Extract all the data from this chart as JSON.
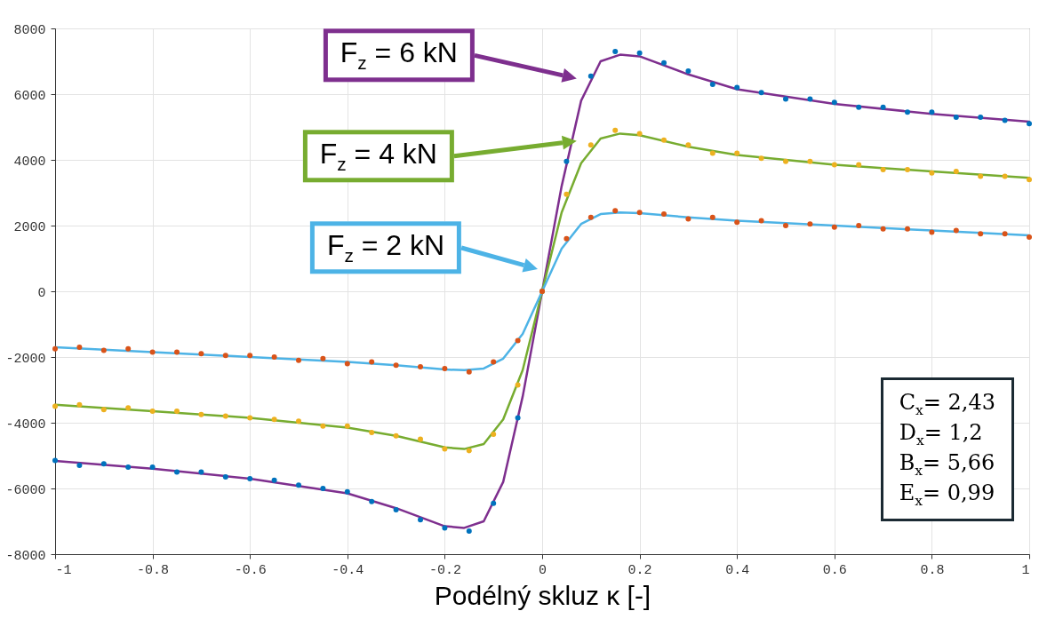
{
  "chart_data": {
    "type": "scatter",
    "xlabel": "Podélný skluz κ [-]",
    "xlim": [
      -1,
      1
    ],
    "xticks": [
      -1,
      -0.8,
      -0.6,
      -0.4,
      -0.2,
      0,
      0.2,
      0.4,
      0.6,
      0.8,
      1
    ],
    "ylim": [
      -8000,
      8000
    ],
    "yticks": [
      -8000,
      -6000,
      -4000,
      -2000,
      0,
      2000,
      4000,
      6000,
      8000
    ],
    "grid": true,
    "series": [
      {
        "marker": "circle",
        "color": "#0072bd",
        "x": [
          -1,
          -0.95,
          -0.9,
          -0.85,
          -0.8,
          -0.75,
          -0.7,
          -0.65,
          -0.6,
          -0.55,
          -0.5,
          -0.45,
          -0.4,
          -0.35,
          -0.3,
          -0.25,
          -0.2,
          -0.15,
          -0.1,
          -0.05,
          0,
          0.05,
          0.1,
          0.15,
          0.2,
          0.25,
          0.3,
          0.35,
          0.4,
          0.45,
          0.5,
          0.55,
          0.6,
          0.65,
          0.7,
          0.75,
          0.8,
          0.85,
          0.9,
          0.95,
          1
        ],
        "values": [
          -5150,
          -5300,
          -5250,
          -5350,
          -5350,
          -5500,
          -5500,
          -5650,
          -5700,
          -5750,
          -5900,
          -6000,
          -6100,
          -6400,
          -6650,
          -6950,
          -7200,
          -7300,
          -6450,
          -3850,
          0,
          3950,
          6550,
          7300,
          7250,
          6950,
          6700,
          6300,
          6200,
          6050,
          5850,
          5850,
          5750,
          5600,
          5600,
          5450,
          5450,
          5300,
          5300,
          5200,
          5100
        ]
      },
      {
        "marker": "circle",
        "color": "#edb120",
        "x": [
          -1,
          -0.95,
          -0.9,
          -0.85,
          -0.8,
          -0.75,
          -0.7,
          -0.65,
          -0.6,
          -0.55,
          -0.5,
          -0.45,
          -0.4,
          -0.35,
          -0.3,
          -0.25,
          -0.2,
          -0.15,
          -0.1,
          -0.05,
          0,
          0.05,
          0.1,
          0.15,
          0.2,
          0.25,
          0.3,
          0.35,
          0.4,
          0.45,
          0.5,
          0.55,
          0.6,
          0.65,
          0.7,
          0.75,
          0.8,
          0.85,
          0.9,
          0.95,
          1
        ],
        "values": [
          -3500,
          -3450,
          -3600,
          -3550,
          -3650,
          -3650,
          -3750,
          -3800,
          -3850,
          -3900,
          -3950,
          -4100,
          -4100,
          -4300,
          -4400,
          -4500,
          -4800,
          -4850,
          -4350,
          -2850,
          0,
          2950,
          4450,
          4900,
          4800,
          4600,
          4450,
          4200,
          4200,
          4050,
          3950,
          3950,
          3850,
          3850,
          3700,
          3700,
          3600,
          3650,
          3500,
          3500,
          3400
        ]
      },
      {
        "marker": "circle",
        "color": "#d95319",
        "x": [
          -1,
          -0.95,
          -0.9,
          -0.85,
          -0.8,
          -0.75,
          -0.7,
          -0.65,
          -0.6,
          -0.55,
          -0.5,
          -0.45,
          -0.4,
          -0.35,
          -0.3,
          -0.25,
          -0.2,
          -0.15,
          -0.1,
          -0.05,
          0,
          0.05,
          0.1,
          0.15,
          0.2,
          0.25,
          0.3,
          0.35,
          0.4,
          0.45,
          0.5,
          0.55,
          0.6,
          0.65,
          0.7,
          0.75,
          0.8,
          0.85,
          0.9,
          0.95,
          1
        ],
        "values": [
          -1750,
          -1700,
          -1800,
          -1750,
          -1850,
          -1850,
          -1900,
          -1950,
          -1950,
          -2000,
          -2100,
          -2050,
          -2200,
          -2150,
          -2250,
          -2300,
          -2350,
          -2450,
          -2150,
          -1500,
          0,
          1600,
          2250,
          2450,
          2400,
          2350,
          2200,
          2250,
          2100,
          2150,
          2000,
          2050,
          1950,
          2000,
          1900,
          1900,
          1800,
          1850,
          1750,
          1750,
          1650
        ]
      },
      {
        "type": "line",
        "color": "#7e2f8e",
        "x": [
          -1,
          -0.8,
          -0.6,
          -0.4,
          -0.3,
          -0.2,
          -0.16,
          -0.12,
          -0.08,
          -0.04,
          0,
          0.04,
          0.08,
          0.12,
          0.16,
          0.2,
          0.3,
          0.4,
          0.6,
          0.8,
          1
        ],
        "values": [
          -5160,
          -5400,
          -5700,
          -6150,
          -6600,
          -7150,
          -7200,
          -7000,
          -5800,
          -3200,
          0,
          3200,
          5800,
          7000,
          7200,
          7150,
          6600,
          6150,
          5700,
          5400,
          5160
        ]
      },
      {
        "type": "line",
        "color": "#77ac30",
        "x": [
          -1,
          -0.8,
          -0.6,
          -0.4,
          -0.3,
          -0.2,
          -0.16,
          -0.12,
          -0.08,
          -0.04,
          0,
          0.04,
          0.08,
          0.12,
          0.16,
          0.2,
          0.3,
          0.4,
          0.6,
          0.8,
          1
        ],
        "values": [
          -3450,
          -3650,
          -3850,
          -4150,
          -4400,
          -4750,
          -4800,
          -4650,
          -3900,
          -2400,
          0,
          2400,
          3900,
          4650,
          4800,
          4750,
          4400,
          4150,
          3850,
          3650,
          3450
        ]
      },
      {
        "type": "line",
        "color": "#4db3e6",
        "x": [
          -1,
          -0.8,
          -0.6,
          -0.4,
          -0.3,
          -0.2,
          -0.16,
          -0.12,
          -0.08,
          -0.04,
          0,
          0.04,
          0.08,
          0.12,
          0.16,
          0.2,
          0.3,
          0.4,
          0.6,
          0.8,
          1
        ],
        "values": [
          -1700,
          -1850,
          -2000,
          -2150,
          -2250,
          -2380,
          -2400,
          -2350,
          -2050,
          -1300,
          0,
          1300,
          2050,
          2350,
          2400,
          2380,
          2250,
          2150,
          2000,
          1850,
          1700
        ]
      }
    ],
    "annotations": [
      "F$_{z}$ = 6 kN",
      "F$_{z}$ = 4 kN",
      "F$_{z}$ = 2 kN",
      "C$_{x}$= 2,43",
      "D$_{x}$= 1,2",
      "B$_{x}$= 5,66",
      "E$_{x}$= 0,99"
    ]
  }
}
